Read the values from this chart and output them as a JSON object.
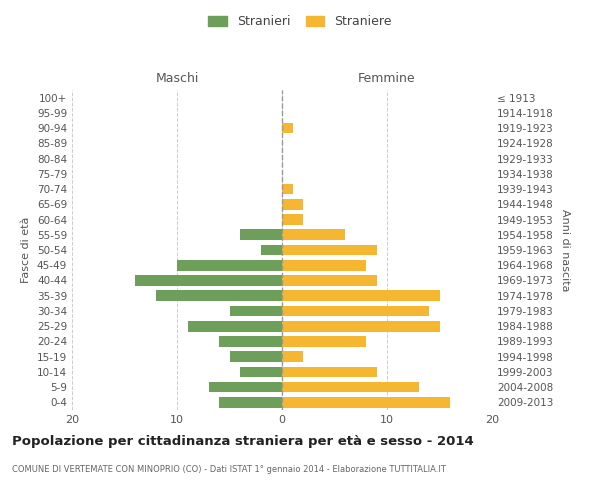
{
  "age_groups": [
    "0-4",
    "5-9",
    "10-14",
    "15-19",
    "20-24",
    "25-29",
    "30-34",
    "35-39",
    "40-44",
    "45-49",
    "50-54",
    "55-59",
    "60-64",
    "65-69",
    "70-74",
    "75-79",
    "80-84",
    "85-89",
    "90-94",
    "95-99",
    "100+"
  ],
  "birth_years": [
    "2009-2013",
    "2004-2008",
    "1999-2003",
    "1994-1998",
    "1989-1993",
    "1984-1988",
    "1979-1983",
    "1974-1978",
    "1969-1973",
    "1964-1968",
    "1959-1963",
    "1954-1958",
    "1949-1953",
    "1944-1948",
    "1939-1943",
    "1934-1938",
    "1929-1933",
    "1924-1928",
    "1919-1923",
    "1914-1918",
    "≤ 1913"
  ],
  "maschi": [
    6,
    7,
    4,
    5,
    6,
    9,
    5,
    12,
    14,
    10,
    2,
    4,
    0,
    0,
    0,
    0,
    0,
    0,
    0,
    0,
    0
  ],
  "femmine": [
    16,
    13,
    9,
    2,
    8,
    15,
    14,
    15,
    9,
    8,
    9,
    6,
    2,
    2,
    1,
    0,
    0,
    0,
    1,
    0,
    0
  ],
  "color_maschi": "#6d9e5a",
  "color_femmine": "#f5b731",
  "title": "Popolazione per cittadinanza straniera per età e sesso - 2014",
  "subtitle": "COMUNE DI VERTEMATE CON MINOPRIO (CO) - Dati ISTAT 1° gennaio 2014 - Elaborazione TUTTITALIA.IT",
  "header_left": "Maschi",
  "header_right": "Femmine",
  "ylabel_left": "Fasce di età",
  "ylabel_right": "Anni di nascita",
  "legend_maschi": "Stranieri",
  "legend_femmine": "Straniere",
  "xlim": 20,
  "background_color": "#ffffff",
  "grid_color": "#cccccc"
}
